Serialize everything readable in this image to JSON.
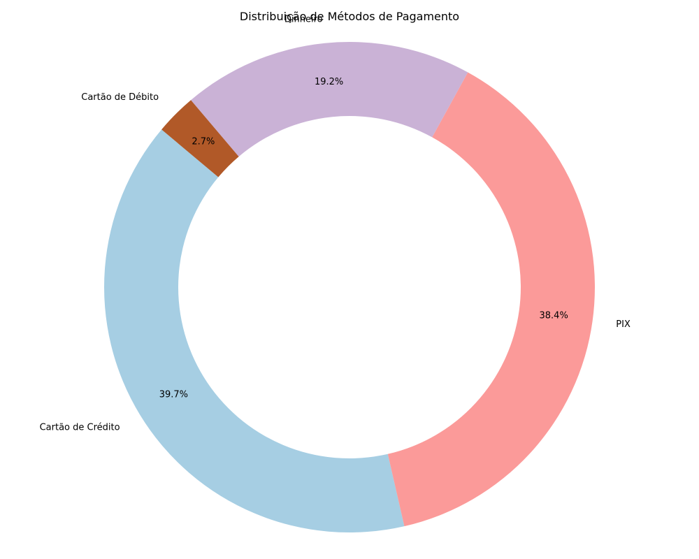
{
  "chart_data": {
    "type": "pie",
    "title": "Distribuição de Métodos de Pagamento",
    "donut": true,
    "categories": [
      "Cartão de Crédito",
      "PIX",
      "Dinheiro",
      "Cartão de Débito"
    ],
    "values": [
      39.7,
      38.4,
      19.2,
      2.7
    ],
    "value_labels": [
      "39.7%",
      "38.4%",
      "19.2%",
      "2.7%"
    ],
    "colors": [
      "#a6cee3",
      "#fb9a99",
      "#cab2d6",
      "#b15928"
    ],
    "start_angle_deg": 140,
    "direction": "counterclockwise"
  }
}
